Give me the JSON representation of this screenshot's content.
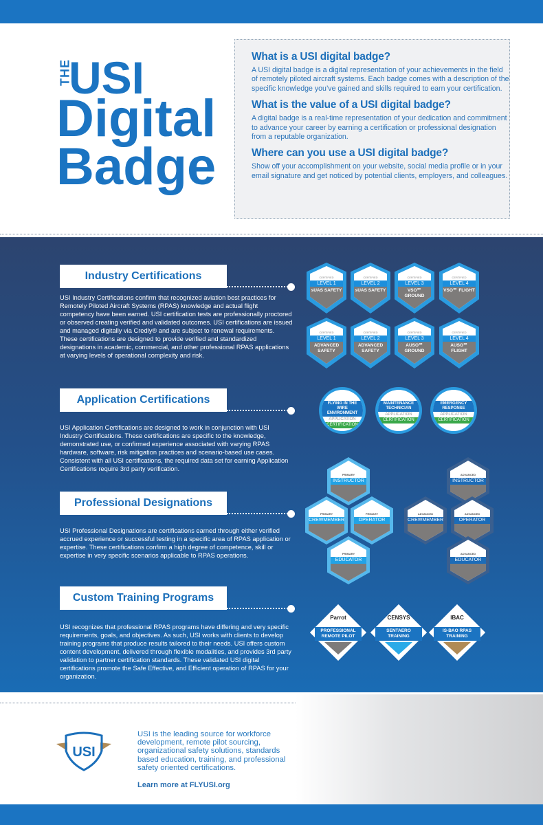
{
  "title": {
    "the": "THE",
    "usi": "USI",
    "digital": "Digital",
    "badge": "Badge"
  },
  "info": [
    {
      "heading": "What is a USI digital badge?",
      "text": "A USI digital badge is a digital representation of your achievements in the field of remotely piloted aircraft systems. Each badge comes with a description of the specific knowledge you’ve gained and skills required to earn your certification."
    },
    {
      "heading": "What is the value of a USI digital badge?",
      "text": "A digital badge is a real-time representation of your dedication and commitment to advance your career by earning a certification or professional designation from a reputable organization."
    },
    {
      "heading": "Where can you use a USI digital badge?",
      "text": "Show off your accomplishment on your website, social media profile or in your email signature and get noticed by potential clients, employers, and colleagues."
    }
  ],
  "sections": [
    {
      "heading": "Industry Certifications",
      "text": "USI Industry Certifications confirm that recognized aviation best practices for Remotely Piloted Aircraft Systems (RPAS) knowledge and actual flight competency have been earned.  USI certification tests are professionally proctored or observed creating verified and validated outcomes. USI certifications are issued and managed digitally via Credly® and are subject to renewal requirements.  These certifications are designed to provide verified and standardized designations in academic, commercial, and other professional RPAS applications at varying levels of operational complexity and risk."
    },
    {
      "heading": "Application Certifications",
      "text": "USI Application Certifications are designed to work in conjunction with USI Industry Certifications.  These certifications are specific to the knowledge, demonstrated use, or confirmed experience associated with varying RPAS hardware, software, risk mitigation practices and scenario-based use cases.  Consistent with all USI certifications, the required data set for earning Application Certifications require 3rd party verification."
    },
    {
      "heading": "Professional Designations",
      "text": "USI Professional Designations are certifications earned through either verified accrued experience or successful testing in a specific area of RPAS application or expertise.  These certifications confirm a high degree of competence, skill or expertise in very specific scenarios applicable to RPAS operations."
    },
    {
      "heading": "Custom Training Programs",
      "text": "USI recognizes that professional RPAS programs have differing and very specific requirements, goals, and objectives. As such, USI works with clients to develop training programs that produce results tailored to their needs. USI offers custom content development, delivered through flexible modalities, and provides 3rd party validation to partner certification standards. These validated USI digital certifications promote the Safe Effective, and Efficient operation of RPAS for your organization."
    }
  ],
  "badge_certified": "CERTIFIED",
  "industry_badges": [
    {
      "level": "LEVEL 1",
      "name": "sUAS SAFETY"
    },
    {
      "level": "LEVEL 2",
      "name": "sUAS SAFETY"
    },
    {
      "level": "LEVEL 3",
      "name": "VSO℠ GROUND"
    },
    {
      "level": "LEVEL 4",
      "name": "VSO℠ FLIGHT"
    },
    {
      "level": "LEVEL 1",
      "name": "ADVANCED SAFETY"
    },
    {
      "level": "LEVEL 2",
      "name": "ADVANCED SAFETY"
    },
    {
      "level": "LEVEL 3",
      "name": "AUSO℠ GROUND"
    },
    {
      "level": "LEVEL 4",
      "name": "AUSO℠ FLIGHT"
    }
  ],
  "application_badges": [
    {
      "name": "FLYING IN THE WIRE ENVIRONMENT",
      "sub": "APPLICATION",
      "ribbon": "CERTIFICATION"
    },
    {
      "name": "MAINTENANCE TECHNICIAN",
      "sub": "APPLICATION",
      "ribbon": "CERTIFICATION"
    },
    {
      "name": "EMERGENCY RESPONSE",
      "sub": "APPLICATION",
      "ribbon": "CERTIFICATION"
    }
  ],
  "professional_badges": [
    {
      "tier": "PRIMARY",
      "name": "INSTRUCTOR"
    },
    {
      "tier": "PRIMARY",
      "name": "CREWMEMBER"
    },
    {
      "tier": "PRIMARY",
      "name": "OPERATOR"
    },
    {
      "tier": "PRIMARY",
      "name": "EDUCATOR"
    },
    {
      "tier": "ADVANCED",
      "name": "INSTRUCTOR"
    },
    {
      "tier": "ADVANCED",
      "name": "CREWMEMBER"
    },
    {
      "tier": "ADVANCED",
      "name": "OPERATOR"
    },
    {
      "tier": "ADVANCED",
      "name": "EDUCATOR"
    }
  ],
  "custom_badges": [
    {
      "partner": "Parrot",
      "name": "PROFESSIONAL REMOTE PILOT",
      "color": "#7d7b7a"
    },
    {
      "partner": "CENSYS",
      "name": "SENTAERO TRAINING",
      "color": "#2aaae8"
    },
    {
      "partner": "IBAC",
      "name": "IS-BAO RPAS TRAINING",
      "color": "#b08a55"
    }
  ],
  "footer": {
    "logo": "USI",
    "text": "USI is the leading source for workforce development, remote pilot sourcing, organizational safety solutions, standards based education, training, and professional safety oriented certifications.",
    "link": "Learn more at FLYUSI.org"
  },
  "colors": {
    "brand_blue": "#1b74c2",
    "navy": "#2c446f",
    "gold": "#b08a55"
  }
}
